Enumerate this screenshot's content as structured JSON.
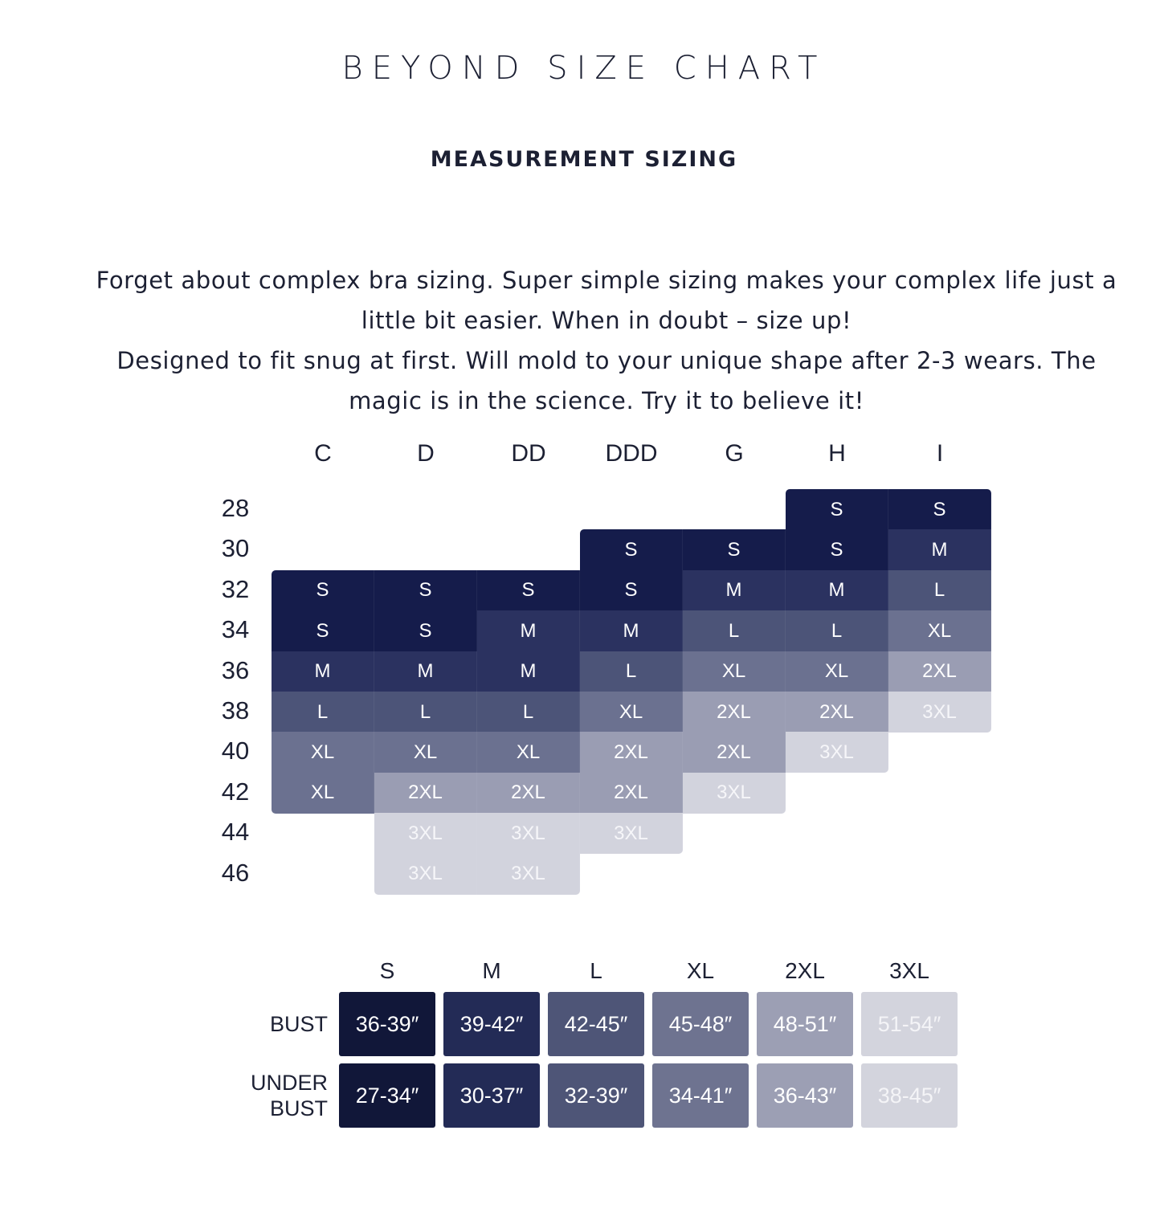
{
  "page": {
    "title": "BEYOND SIZE CHART",
    "subtitle": "MEASUREMENT SIZING",
    "intro": [
      "Forget about complex bra sizing. Super simple sizing makes your complex life just a little bit easier. When in doubt – size up!",
      "Designed to fit snug at first. Will mold to your unique shape after 2-3 wears. The magic is in the science. Try it to believe it!"
    ]
  },
  "size_grid": {
    "cups": [
      "C",
      "D",
      "DD",
      "DDD",
      "G",
      "H",
      "I"
    ],
    "bands": [
      "28",
      "30",
      "32",
      "34",
      "36",
      "38",
      "40",
      "42",
      "44",
      "46"
    ],
    "cells": [
      [
        null,
        null,
        null,
        null,
        null,
        "S",
        "S"
      ],
      [
        null,
        null,
        null,
        "S",
        "S",
        "S",
        "M"
      ],
      [
        "S",
        "S",
        "S",
        "S",
        "M",
        "M",
        "L"
      ],
      [
        "S",
        "S",
        "M",
        "M",
        "L",
        "L",
        "XL"
      ],
      [
        "M",
        "M",
        "M",
        "L",
        "XL",
        "XL",
        "2XL"
      ],
      [
        "L",
        "L",
        "L",
        "XL",
        "2XL",
        "2XL",
        "3XL"
      ],
      [
        "XL",
        "XL",
        "XL",
        "2XL",
        "2XL",
        "3XL",
        null
      ],
      [
        "XL",
        "2XL",
        "2XL",
        "2XL",
        "3XL",
        null,
        null
      ],
      [
        null,
        "3XL",
        "3XL",
        "3XL",
        null,
        null,
        null
      ],
      [
        null,
        "3XL",
        "3XL",
        null,
        null,
        null,
        null
      ]
    ],
    "colors": {
      "S": "#151c4b",
      "M": "#2b3260",
      "L": "#4c5478",
      "XL": "#6b7190",
      "2XL": "#9a9db3",
      "3XL": "#d2d3dd"
    }
  },
  "measurements": {
    "sizes": [
      "S",
      "M",
      "L",
      "XL",
      "2XL",
      "3XL"
    ],
    "rows": [
      {
        "label": "BUST",
        "values": [
          "36-39″",
          "39-42″",
          "42-45″",
          "45-48″",
          "48-51″",
          "51-54″"
        ]
      },
      {
        "label": "UNDER\nBUST",
        "values": [
          "27-34″",
          "30-37″",
          "32-39″",
          "34-41″",
          "36-43″",
          "38-45″"
        ]
      }
    ]
  }
}
